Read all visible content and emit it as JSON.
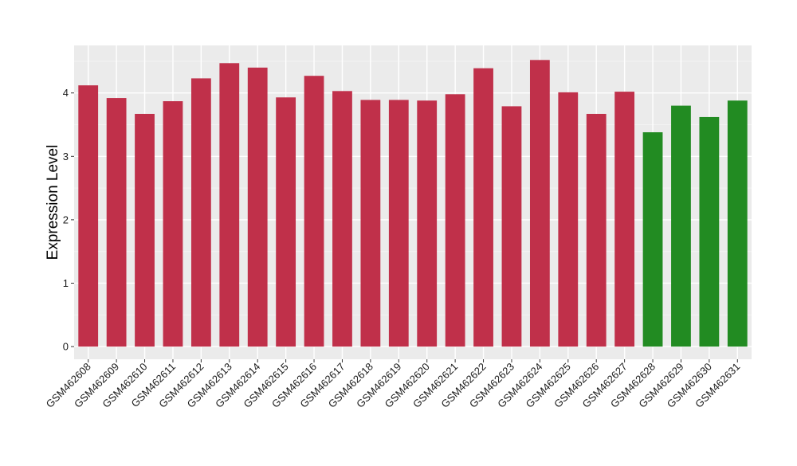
{
  "chart_data": {
    "type": "bar",
    "title": "",
    "xlabel": "",
    "ylabel": "Expression Level",
    "ylim": [
      -0.2,
      4.75
    ],
    "yticks": [
      0,
      1,
      2,
      3,
      4
    ],
    "grid": true,
    "background": "#ebebeb",
    "categories": [
      "GSM462608",
      "GSM462609",
      "GSM462610",
      "GSM462611",
      "GSM462612",
      "GSM462613",
      "GSM462614",
      "GSM462615",
      "GSM462616",
      "GSM462617",
      "GSM462618",
      "GSM462619",
      "GSM462620",
      "GSM462621",
      "GSM462622",
      "GSM462623",
      "GSM462624",
      "GSM462625",
      "GSM462626",
      "GSM462627",
      "GSM462628",
      "GSM462629",
      "GSM462630",
      "GSM462631"
    ],
    "values": [
      4.12,
      3.92,
      3.67,
      3.87,
      4.23,
      4.47,
      4.4,
      3.93,
      4.27,
      4.03,
      3.89,
      3.89,
      3.88,
      3.98,
      4.39,
      3.79,
      4.52,
      4.01,
      3.67,
      4.02,
      3.38,
      3.8,
      3.62,
      3.88
    ],
    "bar_colors": [
      "#c0304a",
      "#c0304a",
      "#c0304a",
      "#c0304a",
      "#c0304a",
      "#c0304a",
      "#c0304a",
      "#c0304a",
      "#c0304a",
      "#c0304a",
      "#c0304a",
      "#c0304a",
      "#c0304a",
      "#c0304a",
      "#c0304a",
      "#c0304a",
      "#c0304a",
      "#c0304a",
      "#c0304a",
      "#c0304a",
      "#228b22",
      "#228b22",
      "#228b22",
      "#228b22"
    ]
  }
}
